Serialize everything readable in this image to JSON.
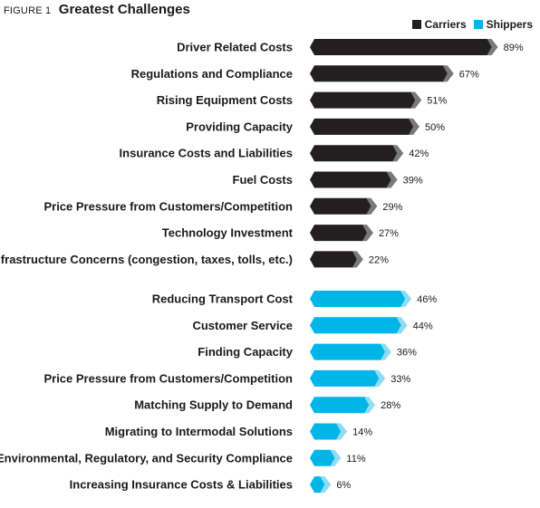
{
  "figure_label": "FIGURE 1",
  "title": "Greatest Challenges",
  "legend": [
    {
      "name": "Carriers",
      "color": "#231f20"
    },
    {
      "name": "Shippers",
      "color": "#00b5e8"
    }
  ],
  "chart_data": {
    "type": "bar",
    "orientation": "horizontal",
    "title": "Greatest Challenges",
    "xlim": [
      0,
      100
    ],
    "grid": false,
    "legend_position": "top-right",
    "series": [
      {
        "name": "Carriers",
        "color": "#231f20",
        "tip_color": "#7a7a7a",
        "categories": [
          "Driver Related Costs",
          "Regulations and Compliance",
          "Rising Equipment Costs",
          "Providing Capacity",
          "Insurance Costs and Liabilities",
          "Fuel Costs",
          "Price Pressure from Customers/Competition",
          "Technology Investment",
          "Infrastructure Concerns (congestion, taxes, tolls, etc.)"
        ],
        "values": [
          89,
          67,
          51,
          50,
          42,
          39,
          29,
          27,
          22
        ],
        "labels": [
          "89%",
          "67%",
          "51%",
          "50%",
          "42%",
          "39%",
          "29%",
          "27%",
          "22%"
        ]
      },
      {
        "name": "Shippers",
        "color": "#00b5e8",
        "tip_color": "#8fdcf5",
        "categories": [
          "Reducing Transport Cost",
          "Customer Service",
          "Finding Capacity",
          "Price Pressure from Customers/Competition",
          "Matching Supply to Demand",
          "Migrating to Intermodal Solutions",
          "Environmental, Regulatory, and Security Compliance",
          "Increasing Insurance Costs & Liabilities"
        ],
        "values": [
          46,
          44,
          36,
          33,
          28,
          14,
          11,
          6
        ],
        "labels": [
          "46%",
          "44%",
          "36%",
          "33%",
          "28%",
          "14%",
          "11%",
          "6%"
        ]
      }
    ]
  }
}
